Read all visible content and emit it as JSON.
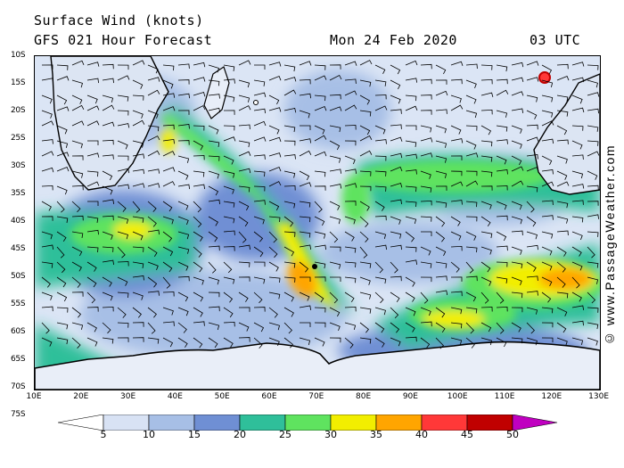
{
  "header": {
    "title_line1": "Surface Wind (knots)",
    "title_line2": "GFS 021 Hour Forecast",
    "date": "Mon 24 Feb 2020",
    "time": "03 UTC"
  },
  "watermark": "© www.PassageWeather.com",
  "map": {
    "lat_labels": [
      "10S",
      "15S",
      "20S",
      "25S",
      "30S",
      "35S",
      "40S",
      "45S",
      "50S",
      "55S",
      "60S",
      "65S",
      "70S",
      "75S"
    ],
    "lon_labels": [
      "10E",
      "20E",
      "30E",
      "40E",
      "50E",
      "60E",
      "70E",
      "80E",
      "90E",
      "100E",
      "110E",
      "120E",
      "130E"
    ],
    "land_color": "#ffffff",
    "coast_color": "#000000",
    "barb_color": "#000000"
  },
  "colorbar": {
    "labels": [
      "5",
      "10",
      "15",
      "20",
      "25",
      "30",
      "35",
      "40",
      "45",
      "50"
    ],
    "colors": [
      "#ffffff",
      "#d8e2f4",
      "#a7bfe6",
      "#6f8fd4",
      "#2fbf9a",
      "#5fe35f",
      "#f2ee00",
      "#ffa500",
      "#ff3838",
      "#c00000",
      "#c000c0"
    ]
  }
}
